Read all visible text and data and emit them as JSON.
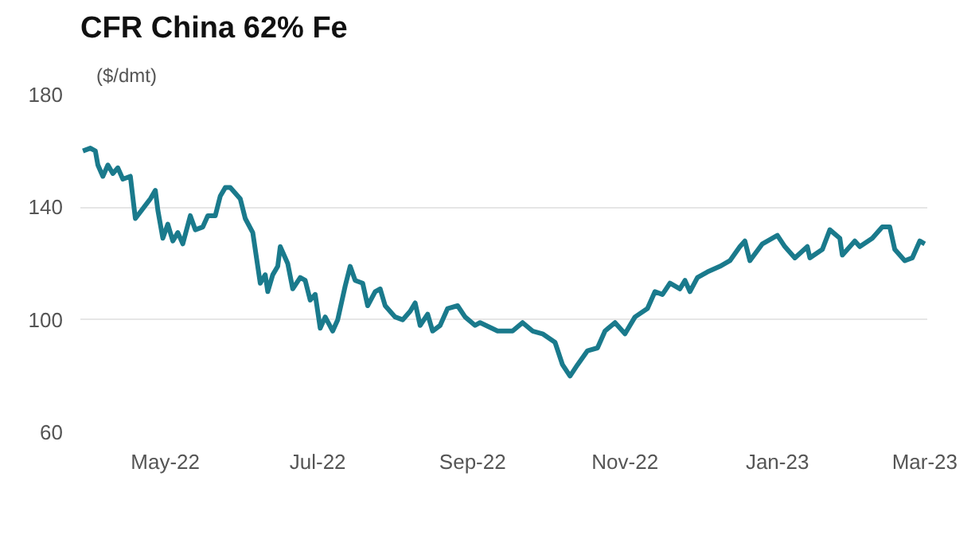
{
  "chart_data": {
    "type": "line",
    "title": "CFR China 62% Fe",
    "ylabel": "($/dmt)",
    "x": [
      "2022-03-29",
      "2022-04-01",
      "2022-04-03",
      "2022-04-04",
      "2022-04-06",
      "2022-04-08",
      "2022-04-10",
      "2022-04-12",
      "2022-04-14",
      "2022-04-17",
      "2022-04-19",
      "2022-04-25",
      "2022-04-27",
      "2022-04-28",
      "2022-04-30",
      "2022-05-02",
      "2022-05-04",
      "2022-05-06",
      "2022-05-08",
      "2022-05-11",
      "2022-05-13",
      "2022-05-16",
      "2022-05-18",
      "2022-05-21",
      "2022-05-23",
      "2022-05-25",
      "2022-05-27",
      "2022-05-31",
      "2022-06-02",
      "2022-06-05",
      "2022-06-08",
      "2022-06-10",
      "2022-06-11",
      "2022-06-13",
      "2022-06-15",
      "2022-06-16",
      "2022-06-19",
      "2022-06-21",
      "2022-06-24",
      "2022-06-26",
      "2022-06-28",
      "2022-06-30",
      "2022-07-02",
      "2022-07-04",
      "2022-07-07",
      "2022-07-09",
      "2022-07-12",
      "2022-07-14",
      "2022-07-16",
      "2022-07-19",
      "2022-07-21",
      "2022-07-24",
      "2022-07-26",
      "2022-07-28",
      "2022-08-01",
      "2022-08-04",
      "2022-08-07",
      "2022-08-09",
      "2022-08-11",
      "2022-08-14",
      "2022-08-16",
      "2022-08-19",
      "2022-08-22",
      "2022-08-26",
      "2022-08-29",
      "2022-09-02",
      "2022-09-04",
      "2022-09-11",
      "2022-09-17",
      "2022-09-21",
      "2022-09-25",
      "2022-09-29",
      "2022-10-04",
      "2022-10-07",
      "2022-10-10",
      "2022-10-13",
      "2022-10-17",
      "2022-10-21",
      "2022-10-24",
      "2022-10-28",
      "2022-11-01",
      "2022-11-05",
      "2022-11-10",
      "2022-11-13",
      "2022-11-16",
      "2022-11-19",
      "2022-11-23",
      "2022-11-25",
      "2022-11-27",
      "2022-11-30",
      "2022-12-04",
      "2022-12-09",
      "2022-12-13",
      "2022-12-17",
      "2022-12-19",
      "2022-12-21",
      "2022-12-26",
      "2023-01-01",
      "2023-01-04",
      "2023-01-08",
      "2023-01-13",
      "2023-01-14",
      "2023-01-19",
      "2023-01-22",
      "2023-01-26",
      "2023-01-27",
      "2023-02-01",
      "2023-02-03",
      "2023-02-08",
      "2023-02-12",
      "2023-02-15",
      "2023-02-17",
      "2023-02-21",
      "2023-02-24",
      "2023-02-27",
      "2023-03-01"
    ],
    "series": [
      {
        "color": "#1a7a8c",
        "values": [
          160,
          161,
          160,
          155,
          151,
          155,
          152,
          154,
          150,
          151,
          136,
          143,
          146,
          139,
          129,
          134,
          128,
          131,
          127,
          137,
          132,
          133,
          137,
          137,
          144,
          147,
          147,
          143,
          136,
          131,
          113,
          116,
          110,
          116,
          119,
          126,
          120,
          111,
          115,
          114,
          107,
          109,
          97,
          101,
          96,
          100,
          112,
          119,
          114,
          113,
          105,
          110,
          111,
          105,
          101,
          100,
          103,
          106,
          98,
          102,
          96,
          98,
          104,
          105,
          101,
          98,
          99,
          96,
          96,
          99,
          96,
          95,
          92,
          84,
          80,
          84,
          89,
          90,
          96,
          99,
          95,
          101,
          104,
          110,
          109,
          113,
          111,
          114,
          110,
          115,
          117,
          119,
          121,
          126,
          128,
          121,
          127,
          130,
          126,
          122,
          126,
          122,
          125,
          132,
          129,
          123,
          128,
          126,
          129,
          133,
          133,
          125,
          121,
          122,
          128,
          127
        ]
      }
    ],
    "xlim": [
      "2022-03-28",
      "2023-03-02"
    ],
    "xticks": [
      {
        "value": "2022-05-01",
        "label": "May-22"
      },
      {
        "value": "2022-07-01",
        "label": "Jul-22"
      },
      {
        "value": "2022-09-01",
        "label": "Sep-22"
      },
      {
        "value": "2022-11-01",
        "label": "Nov-22"
      },
      {
        "value": "2023-01-01",
        "label": "Jan-23"
      },
      {
        "value": "2023-03-01",
        "label": "Mar-23"
      }
    ],
    "ylim": [
      60,
      180
    ],
    "yticks": [
      60,
      100,
      140,
      180
    ],
    "grid": "y",
    "line_style": "solid"
  }
}
